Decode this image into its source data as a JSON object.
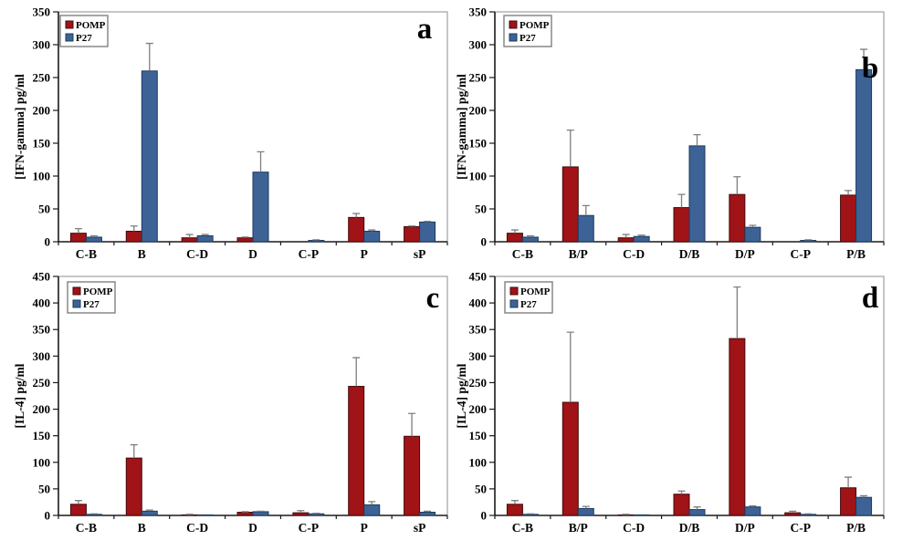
{
  "figure": {
    "background": "#FFFFFF"
  },
  "colors": {
    "error_bar": "#7F7F7F",
    "axis": "#1A1A1A",
    "plot_border": "#8C8C8C",
    "legend_border": "#7F7F7F",
    "text": "#000000"
  },
  "chart_data": [
    {
      "id": "a",
      "type": "bar",
      "panel_letter": "a",
      "ylabel": "[IFN-gamma] pg/ml",
      "xlabel": "",
      "ylim": [
        0,
        350
      ],
      "ytick_step": 50,
      "grid": false,
      "legend_position": "top-left",
      "categories": [
        "C-B",
        "B",
        "C-D",
        "D",
        "C-P",
        "P",
        "sP"
      ],
      "series": [
        {
          "name": "POMP",
          "color": "#A01316",
          "border_color": "#420B0D",
          "values": [
            13,
            16,
            6,
            6,
            0,
            37,
            23
          ],
          "errors_plus": [
            7,
            8,
            5,
            1,
            0,
            6,
            1
          ]
        },
        {
          "name": "P27",
          "color": "#3D6396",
          "border_color": "#1C3A5E",
          "values": [
            7,
            260,
            9,
            106,
            2,
            16,
            30
          ],
          "errors_plus": [
            2,
            42,
            2,
            31,
            1,
            2,
            1
          ]
        }
      ]
    },
    {
      "id": "b",
      "type": "bar",
      "panel_letter": "b",
      "ylabel": "[IFN-gamma] pg/ml",
      "xlabel": "",
      "ylim": [
        0,
        350
      ],
      "ytick_step": 50,
      "grid": false,
      "legend_position": "top-left",
      "categories": [
        "C-B",
        "B/P",
        "C-D",
        "D/B",
        "D/P",
        "C-P",
        "P/B"
      ],
      "series": [
        {
          "name": "POMP",
          "color": "#A01316",
          "border_color": "#420B0D",
          "values": [
            13,
            114,
            6,
            52,
            72,
            0,
            71
          ],
          "errors_plus": [
            5,
            56,
            5,
            20,
            27,
            0,
            7
          ]
        },
        {
          "name": "P27",
          "color": "#3D6396",
          "border_color": "#1C3A5E",
          "values": [
            7,
            40,
            8,
            146,
            22,
            2,
            262
          ],
          "errors_plus": [
            2,
            15,
            2,
            17,
            3,
            1,
            31
          ]
        }
      ]
    },
    {
      "id": "c",
      "type": "bar",
      "panel_letter": "c",
      "ylabel": "[IL-4] pg/ml",
      "xlabel": "",
      "ylim": [
        0,
        450
      ],
      "ytick_step": 50,
      "grid": false,
      "legend_position": "top-left",
      "categories": [
        "C-B",
        "B",
        "C-D",
        "D",
        "C-P",
        "P",
        "sP"
      ],
      "series": [
        {
          "name": "POMP",
          "color": "#A01316",
          "border_color": "#420B0D",
          "values": [
            21,
            108,
            1,
            6,
            5,
            243,
            149
          ],
          "errors_plus": [
            7,
            25,
            1,
            1,
            4,
            54,
            43
          ]
        },
        {
          "name": "P27",
          "color": "#3D6396",
          "border_color": "#1C3A5E",
          "values": [
            2,
            8,
            1,
            7,
            3,
            20,
            6
          ],
          "errors_plus": [
            1,
            2,
            0,
            1,
            1,
            6,
            2
          ]
        }
      ]
    },
    {
      "id": "d",
      "type": "bar",
      "panel_letter": "d",
      "ylabel": "[IL-4] pg/ml",
      "xlabel": "",
      "ylim": [
        0,
        450
      ],
      "ytick_step": 50,
      "grid": false,
      "legend_position": "top-left",
      "categories": [
        "C-B",
        "B/P",
        "C-D",
        "D/B",
        "D/P",
        "C-P",
        "P/B"
      ],
      "series": [
        {
          "name": "POMP",
          "color": "#A01316",
          "border_color": "#420B0D",
          "values": [
            21,
            213,
            1,
            40,
            333,
            5,
            52
          ],
          "errors_plus": [
            7,
            132,
            1,
            6,
            97,
            3,
            20
          ]
        },
        {
          "name": "P27",
          "color": "#3D6396",
          "border_color": "#1C3A5E",
          "values": [
            2,
            13,
            1,
            11,
            16,
            2,
            34
          ],
          "errors_plus": [
            1,
            4,
            0,
            5,
            2,
            1,
            3
          ]
        }
      ]
    }
  ]
}
